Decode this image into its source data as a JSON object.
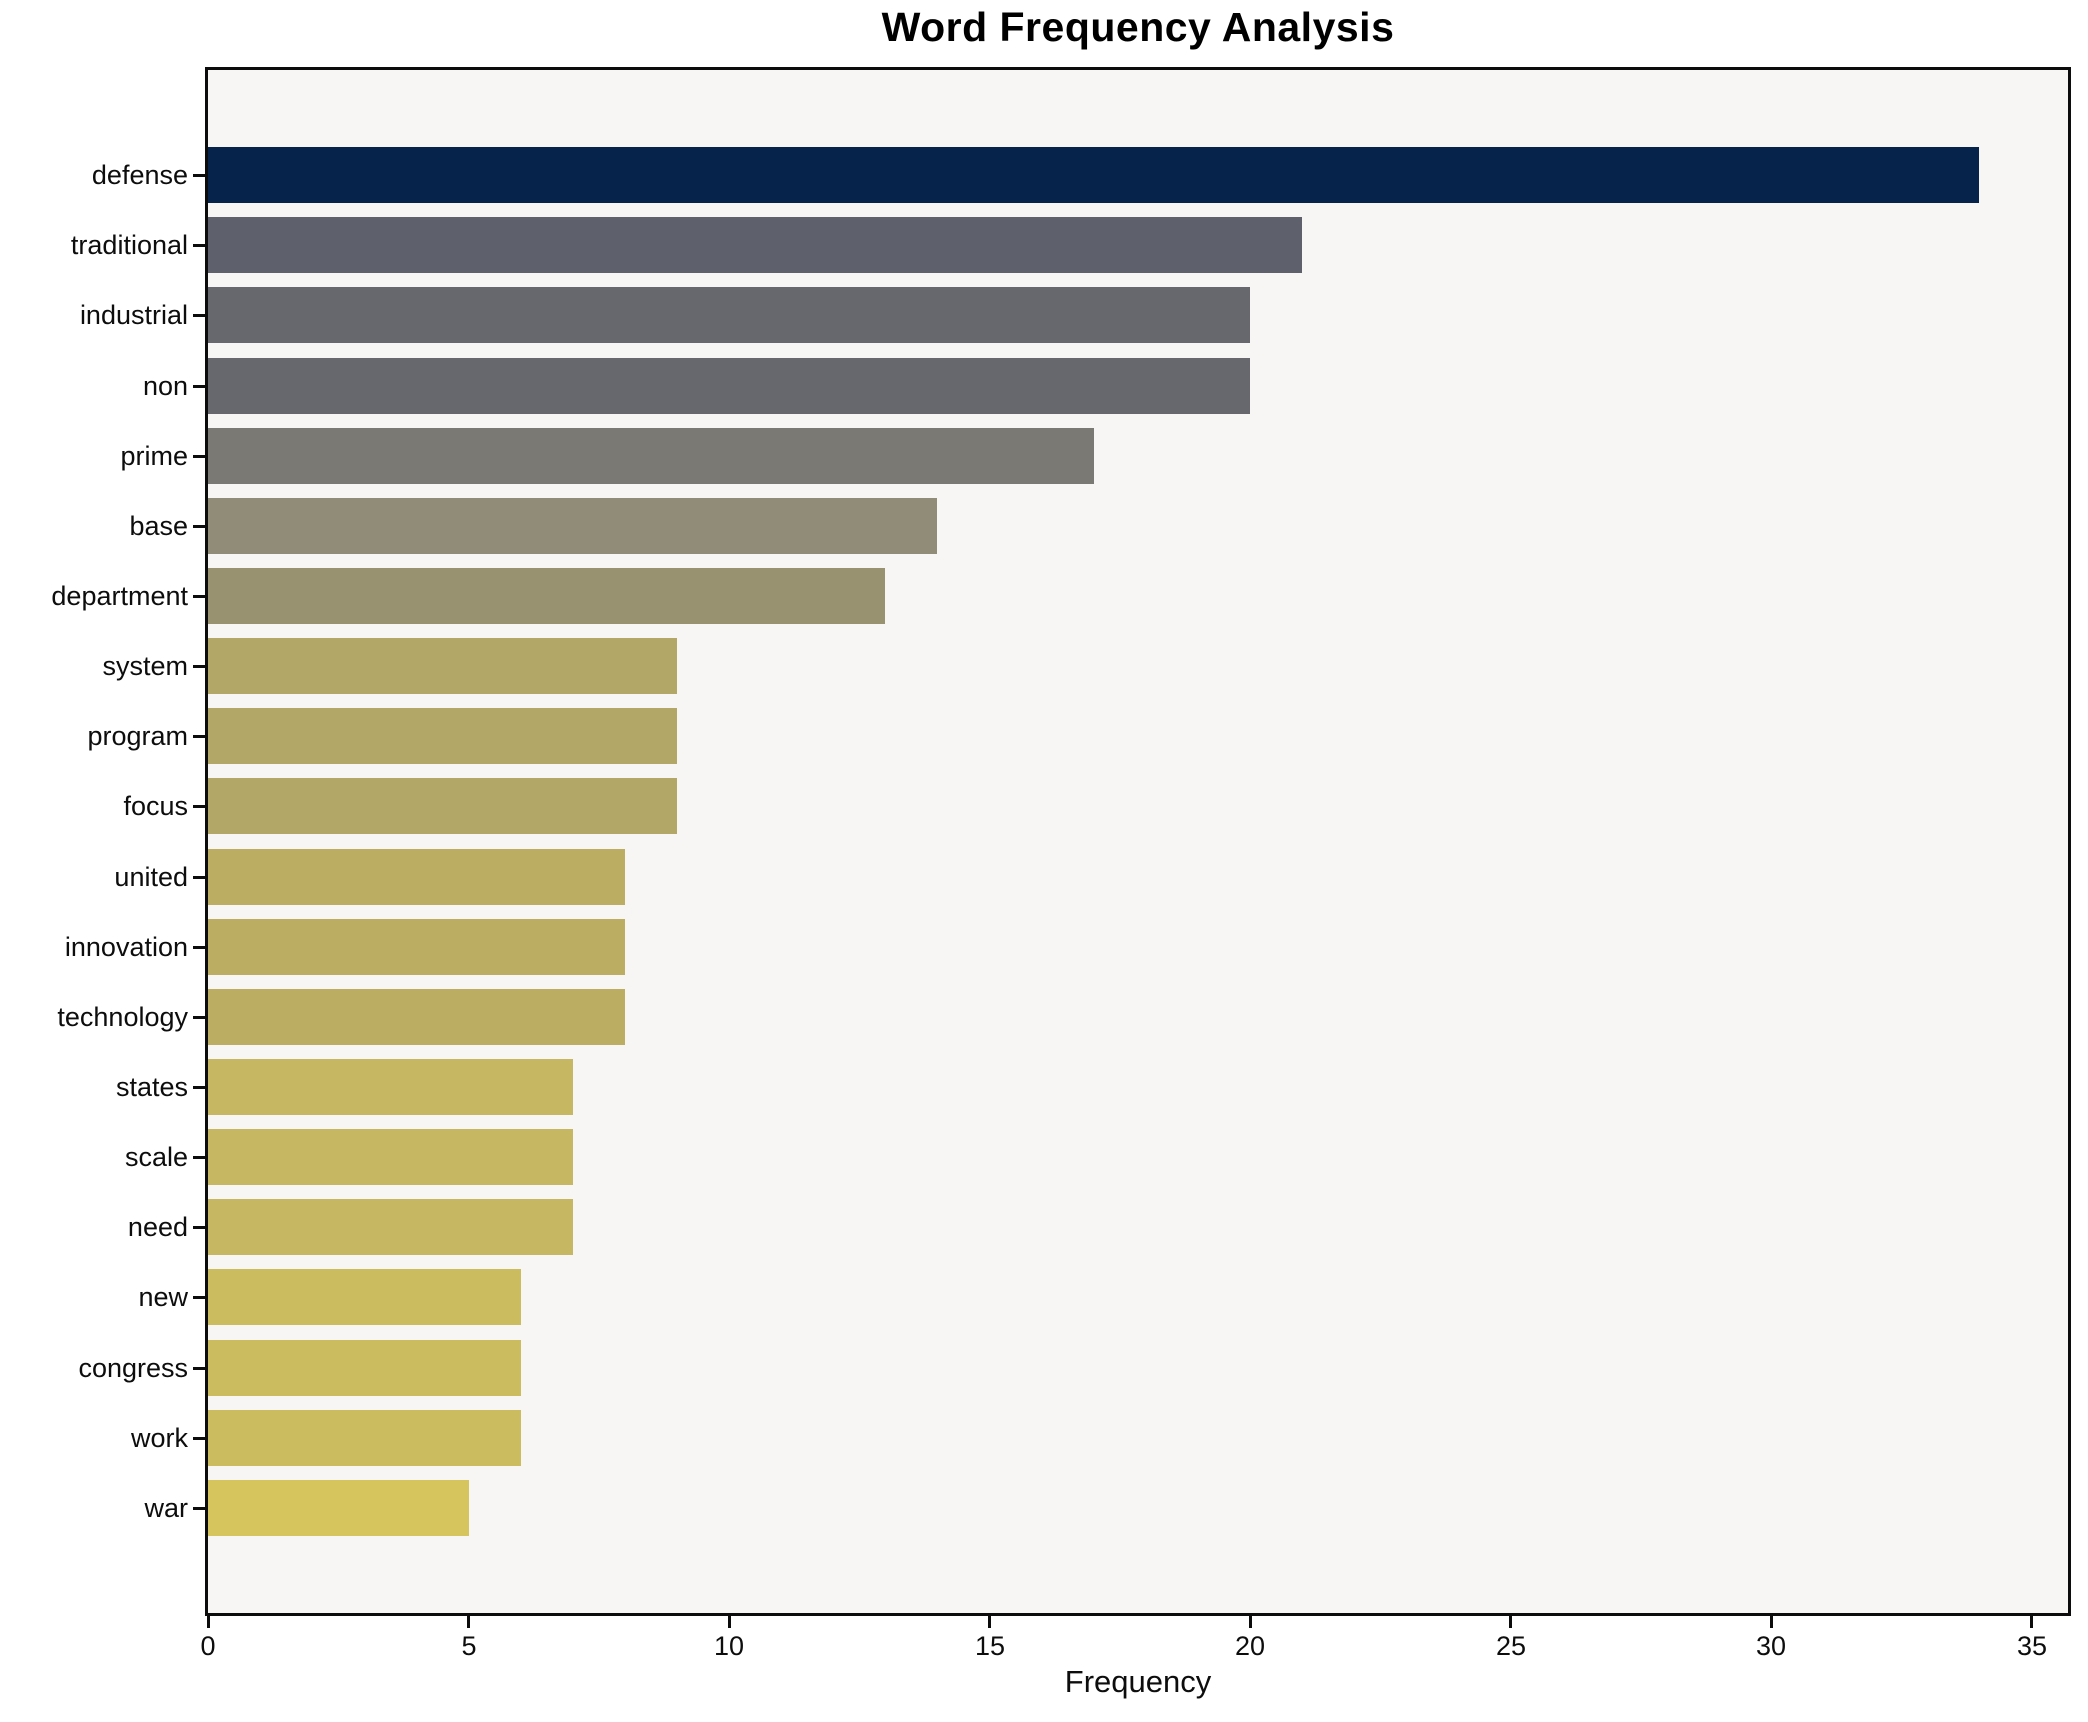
{
  "chart_data": {
    "type": "bar",
    "orientation": "horizontal",
    "title": "Word Frequency Analysis",
    "xlabel": "Frequency",
    "ylabel": "",
    "categories": [
      "defense",
      "traditional",
      "industrial",
      "non",
      "prime",
      "base",
      "department",
      "system",
      "program",
      "focus",
      "united",
      "innovation",
      "technology",
      "states",
      "scale",
      "need",
      "new",
      "congress",
      "work",
      "war"
    ],
    "values": [
      34,
      21,
      20,
      20,
      17,
      14,
      13,
      9,
      9,
      9,
      8,
      8,
      8,
      7,
      7,
      7,
      6,
      6,
      6,
      5
    ],
    "bar_colors": [
      "#06234b",
      "#5e616b",
      "#66686d",
      "#66686d",
      "#7a7974",
      "#908c78",
      "#999271",
      "#b2a766",
      "#b2a766",
      "#b2a766",
      "#bbae63",
      "#bbae63",
      "#bbae63",
      "#c6b763",
      "#c6b763",
      "#c6b763",
      "#ccbc60",
      "#ccbc60",
      "#ccbc60",
      "#d6c55c"
    ],
    "xlim": [
      0,
      35.7
    ],
    "xticks": [
      0,
      5,
      10,
      15,
      20,
      25,
      30,
      35
    ],
    "grid": false,
    "legend": null,
    "plot_background": "#f7f6f5",
    "figure_background": "#ffffff",
    "spine_color": "#0c0c0c",
    "text_color": "#0d0d0d"
  }
}
